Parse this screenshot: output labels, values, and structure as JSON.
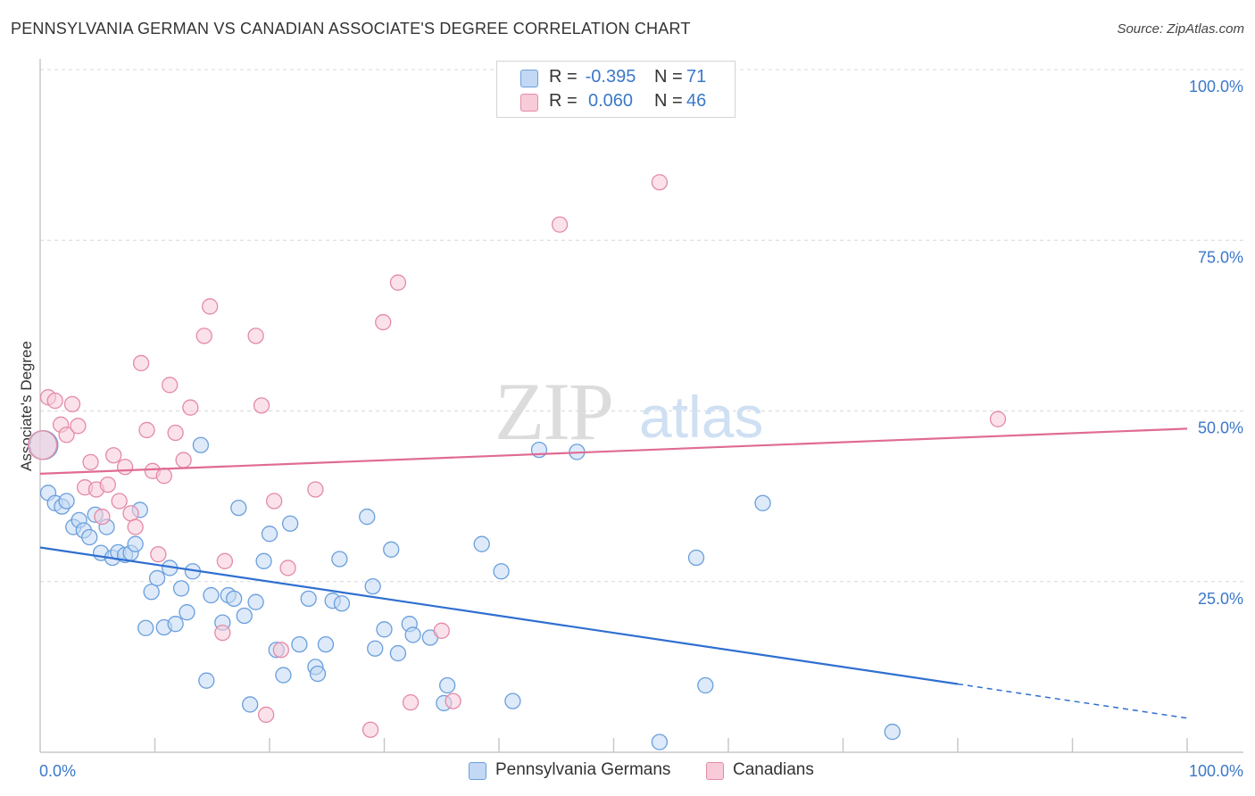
{
  "title": "PENNSYLVANIA GERMAN VS CANADIAN ASSOCIATE'S DEGREE CORRELATION CHART",
  "source": "Source: ZipAtlas.com",
  "watermark": {
    "zip": "ZIP",
    "atlas": "atlas"
  },
  "legend": {
    "r_label": "R =",
    "n_label": "N =",
    "rows": [
      {
        "r": "-0.395",
        "n": "71",
        "color": "#a8c8f0"
      },
      {
        "r": "0.060",
        "n": "46",
        "color": "#f7b8cb"
      }
    ]
  },
  "colors": {
    "blue_fill": "#c2d8f4",
    "blue_stroke": "#6a9fdc",
    "blue_line": "#2f6fd0",
    "pink_fill": "#f8cbd8",
    "pink_stroke": "#e48aa6",
    "pink_line": "#e06b92",
    "tick_text": "#3b78c9",
    "grid": "#d8d8d8",
    "axis": "#c8c8c8"
  },
  "chart_data": {
    "type": "scatter",
    "title": "PENNSYLVANIA GERMAN VS CANADIAN ASSOCIATE'S DEGREE CORRELATION CHART",
    "xlabel": "",
    "ylabel": "Associate's Degree",
    "xlim": [
      0,
      100
    ],
    "ylim": [
      0,
      100
    ],
    "x_tick_labels": [
      "0.0%",
      "100.0%"
    ],
    "y_tick_labels": [
      "25.0%",
      "50.0%",
      "75.0%",
      "100.0%"
    ],
    "y_ticks": [
      25,
      50,
      75,
      100
    ],
    "grid": true,
    "legend_position": "top-center",
    "series": [
      {
        "name": "Pennsylvania Germans",
        "color": "#a8c8f0",
        "trend": {
          "x0": 0,
          "y0": 30.0,
          "x1": 80,
          "y1": 10.0,
          "dashed_to_x": 100,
          "dashed_to_y": 5.0
        },
        "points": [
          [
            0.7,
            38.0
          ],
          [
            1.3,
            36.5
          ],
          [
            1.9,
            36.0
          ],
          [
            2.3,
            36.8
          ],
          [
            2.9,
            33.0
          ],
          [
            3.4,
            34.0
          ],
          [
            3.8,
            32.5
          ],
          [
            4.3,
            31.5
          ],
          [
            4.8,
            34.8
          ],
          [
            5.3,
            29.2
          ],
          [
            5.8,
            33.0
          ],
          [
            6.3,
            28.5
          ],
          [
            6.8,
            29.3
          ],
          [
            7.4,
            28.9
          ],
          [
            7.9,
            29.2
          ],
          [
            8.3,
            30.5
          ],
          [
            8.7,
            35.5
          ],
          [
            9.2,
            18.2
          ],
          [
            9.7,
            23.5
          ],
          [
            10.2,
            25.5
          ],
          [
            10.8,
            18.3
          ],
          [
            11.3,
            27.0
          ],
          [
            11.8,
            18.8
          ],
          [
            12.3,
            24.0
          ],
          [
            12.8,
            20.5
          ],
          [
            13.3,
            26.5
          ],
          [
            14.0,
            45.0
          ],
          [
            14.5,
            10.5
          ],
          [
            14.9,
            23.0
          ],
          [
            15.9,
            19.0
          ],
          [
            16.4,
            23.0
          ],
          [
            16.9,
            22.5
          ],
          [
            17.3,
            35.8
          ],
          [
            17.8,
            20.0
          ],
          [
            18.3,
            7.0
          ],
          [
            18.8,
            22.0
          ],
          [
            19.5,
            28.0
          ],
          [
            20.0,
            32.0
          ],
          [
            20.6,
            15.0
          ],
          [
            21.2,
            11.3
          ],
          [
            21.8,
            33.5
          ],
          [
            22.6,
            15.8
          ],
          [
            23.4,
            22.5
          ],
          [
            24.0,
            12.5
          ],
          [
            24.2,
            11.5
          ],
          [
            24.9,
            15.8
          ],
          [
            25.5,
            22.2
          ],
          [
            26.1,
            28.3
          ],
          [
            26.3,
            21.8
          ],
          [
            28.5,
            34.5
          ],
          [
            29.0,
            24.3
          ],
          [
            29.2,
            15.2
          ],
          [
            30.0,
            18.0
          ],
          [
            30.6,
            29.7
          ],
          [
            31.2,
            14.5
          ],
          [
            32.2,
            18.8
          ],
          [
            32.5,
            17.2
          ],
          [
            34.0,
            16.8
          ],
          [
            35.2,
            7.2
          ],
          [
            35.5,
            9.8
          ],
          [
            38.5,
            30.5
          ],
          [
            40.2,
            26.5
          ],
          [
            41.2,
            7.5
          ],
          [
            43.5,
            44.3
          ],
          [
            46.8,
            44.0
          ],
          [
            54.0,
            1.5
          ],
          [
            57.2,
            28.5
          ],
          [
            58.0,
            9.8
          ],
          [
            63.0,
            36.5
          ],
          [
            74.3,
            3.0
          ],
          [
            0.3,
            45.0
          ]
        ]
      },
      {
        "name": "Canadians",
        "color": "#f7b8cb",
        "trend": {
          "x0": 0,
          "y0": 40.8,
          "x1": 100,
          "y1": 47.4
        },
        "points": [
          [
            0.2,
            45.0
          ],
          [
            0.7,
            52.0
          ],
          [
            1.3,
            51.5
          ],
          [
            1.8,
            48.0
          ],
          [
            2.3,
            46.5
          ],
          [
            2.8,
            51.0
          ],
          [
            3.3,
            47.8
          ],
          [
            3.9,
            38.8
          ],
          [
            4.4,
            42.5
          ],
          [
            4.9,
            38.5
          ],
          [
            5.4,
            34.5
          ],
          [
            5.9,
            39.2
          ],
          [
            6.4,
            43.5
          ],
          [
            6.9,
            36.8
          ],
          [
            7.4,
            41.8
          ],
          [
            7.9,
            35.0
          ],
          [
            8.3,
            33.0
          ],
          [
            8.8,
            57.0
          ],
          [
            9.3,
            47.2
          ],
          [
            9.8,
            41.2
          ],
          [
            10.3,
            29.0
          ],
          [
            10.8,
            40.5
          ],
          [
            11.3,
            53.8
          ],
          [
            11.8,
            46.8
          ],
          [
            12.5,
            42.8
          ],
          [
            13.1,
            50.5
          ],
          [
            14.3,
            61.0
          ],
          [
            14.8,
            65.3
          ],
          [
            15.9,
            17.5
          ],
          [
            16.1,
            28.0
          ],
          [
            18.8,
            61.0
          ],
          [
            19.3,
            50.8
          ],
          [
            19.7,
            5.5
          ],
          [
            20.4,
            36.8
          ],
          [
            21.0,
            15.0
          ],
          [
            21.6,
            27.0
          ],
          [
            24.0,
            38.5
          ],
          [
            28.8,
            3.3
          ],
          [
            29.9,
            63.0
          ],
          [
            31.2,
            68.8
          ],
          [
            32.3,
            7.3
          ],
          [
            35.0,
            17.8
          ],
          [
            36.0,
            7.5
          ],
          [
            45.3,
            77.3
          ],
          [
            54.0,
            83.5
          ],
          [
            83.5,
            48.8
          ]
        ]
      }
    ]
  }
}
